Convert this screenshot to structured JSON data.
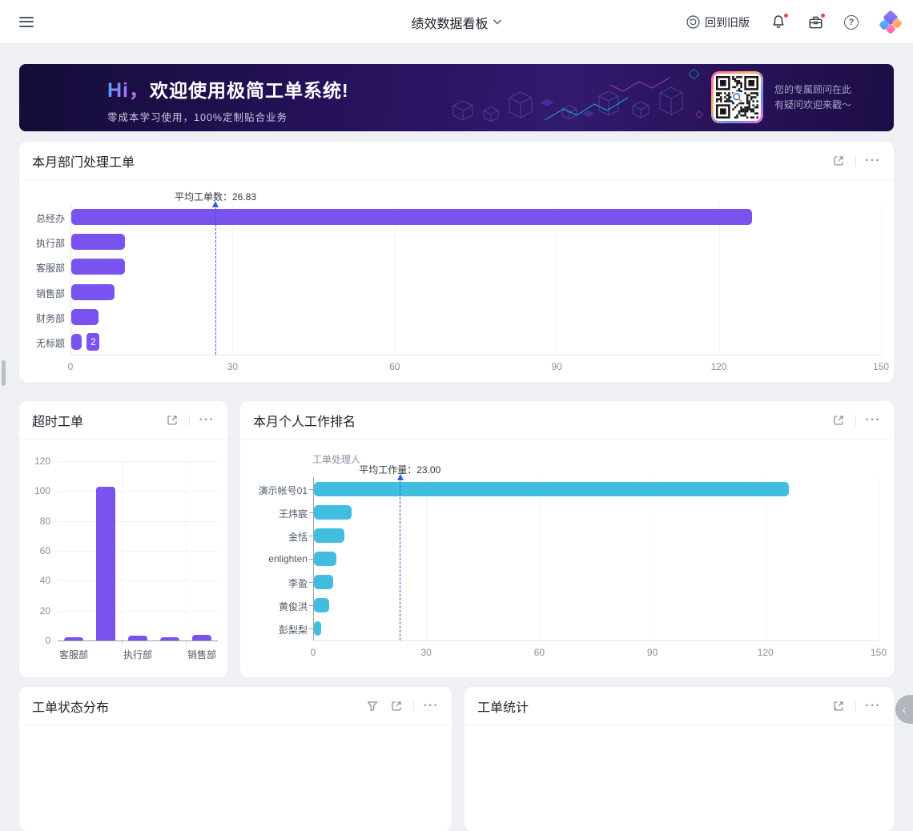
{
  "header": {
    "title": "绩效数据看板",
    "back_to_old": "回到旧版",
    "help_glyph": "?"
  },
  "banner": {
    "greeting": "Hi，",
    "title": "欢迎使用极简工单系统!",
    "subtitle": "零成本学习使用，100%定制贴合业务",
    "qr_caption_line1": "您的专属顾问在此",
    "qr_caption_line2": "有疑问欢迎来戳～"
  },
  "cards": {
    "dept": {
      "title": "本月部门处理工单"
    },
    "overtime": {
      "title": "超时工单"
    },
    "personal": {
      "title": "本月个人工作排名"
    },
    "status": {
      "title": "工单状态分布"
    },
    "stats": {
      "title": "工单统计"
    }
  },
  "ui": {
    "more_glyph": "···",
    "collapse_glyph": "‹"
  },
  "colors": {
    "purple_bar": "#7a52ee",
    "cyan_bar": "#41bedf",
    "average_line": "#2e5be6",
    "badge_red": "#f53f3f"
  },
  "chart_data": [
    {
      "id": "dept",
      "type": "bar",
      "orientation": "horizontal",
      "title": "本月部门处理工单",
      "categories": [
        "总经办",
        "执行部",
        "客服部",
        "销售部",
        "财务部",
        "无标题"
      ],
      "values": [
        126,
        10,
        10,
        8,
        5,
        2
      ],
      "xlim": [
        0,
        150
      ],
      "xticks": [
        0,
        30,
        60,
        90,
        120,
        150
      ],
      "average": 26.83,
      "average_label": "平均工单数：26.83",
      "bar_color": "#7a52ee",
      "value_label": {
        "index": 5,
        "text": "2"
      },
      "grid": true,
      "legend": "none"
    },
    {
      "id": "overtime",
      "type": "bar",
      "orientation": "vertical",
      "title": "超时工单",
      "categories": [
        "客服部",
        "",
        "执行部",
        "",
        "销售部"
      ],
      "values": [
        2,
        103,
        3,
        2,
        4
      ],
      "ylim": [
        0,
        120
      ],
      "yticks": [
        0,
        20,
        40,
        60,
        80,
        100,
        120
      ],
      "bar_color": "#7a52ee",
      "grid": true,
      "legend": "none"
    },
    {
      "id": "personal",
      "type": "bar",
      "orientation": "horizontal",
      "title": "本月个人工作排名",
      "axis_name": "工单处理人",
      "categories": [
        "演示帐号01",
        "王炜宸",
        "金恬",
        "enlighten",
        "李盈",
        "黄俊洪",
        "彭梨梨"
      ],
      "values": [
        126,
        10,
        8,
        6,
        5,
        4,
        2
      ],
      "xlim": [
        0,
        150
      ],
      "xticks": [
        0,
        30,
        60,
        90,
        120,
        150
      ],
      "average": 23.0,
      "average_label": "平均工作量：23.00",
      "bar_color": "#41bedf",
      "grid": true,
      "legend": "none"
    }
  ]
}
